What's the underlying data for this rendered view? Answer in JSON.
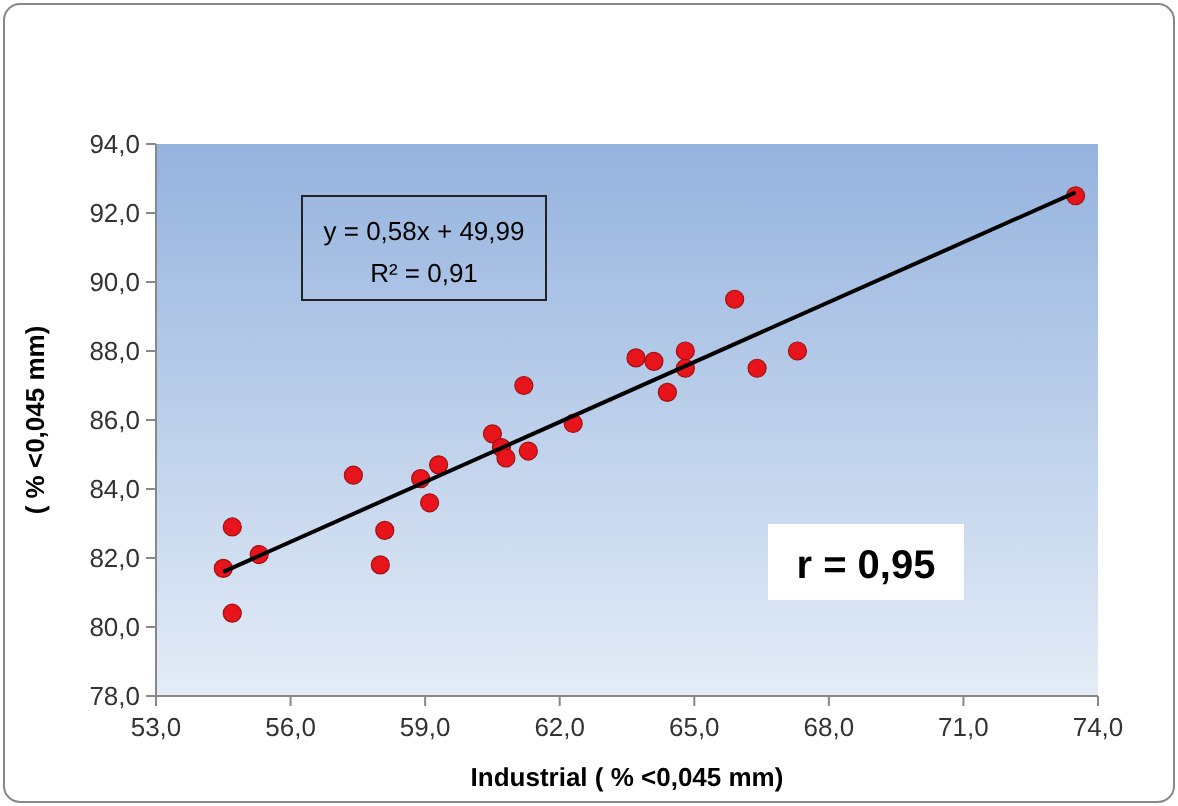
{
  "chart_data": {
    "type": "scatter",
    "xlabel": "Industrial  ( % <0,045 mm)",
    "ylabel": "( % <0,045 mm)",
    "xlim": [
      53,
      74
    ],
    "xticks": [
      {
        "value": 53,
        "label": "53,0"
      },
      {
        "value": 56,
        "label": "56,0"
      },
      {
        "value": 59,
        "label": "59,0"
      },
      {
        "value": 62,
        "label": "62,0"
      },
      {
        "value": 65,
        "label": "65,0"
      },
      {
        "value": 68,
        "label": "68,0"
      },
      {
        "value": 71,
        "label": "71,0"
      },
      {
        "value": 74,
        "label": "74,0"
      }
    ],
    "ylim": [
      78,
      94
    ],
    "yticks": [
      {
        "value": 78,
        "label": "78,0"
      },
      {
        "value": 80,
        "label": "80,0"
      },
      {
        "value": 82,
        "label": "82,0"
      },
      {
        "value": 84,
        "label": "84,0"
      },
      {
        "value": 86,
        "label": "86,0"
      },
      {
        "value": 88,
        "label": "88,0"
      },
      {
        "value": 90,
        "label": "90,0"
      },
      {
        "value": 92,
        "label": "92,0"
      },
      {
        "value": 94,
        "label": "94,0"
      }
    ],
    "grid": false,
    "series": [
      {
        "marker": "circle",
        "color": "#e8141c",
        "x": [
          54.5,
          54.7,
          54.7,
          55.3,
          57.4,
          58.0,
          58.1,
          58.9,
          59.1,
          59.3,
          60.5,
          60.7,
          60.8,
          61.2,
          61.3,
          62.3,
          63.7,
          64.1,
          64.4,
          64.8,
          64.8,
          65.9,
          66.4,
          67.3,
          73.5
        ],
        "values": [
          81.7,
          82.9,
          80.4,
          82.1,
          84.4,
          81.8,
          82.8,
          84.3,
          83.6,
          84.7,
          85.6,
          85.2,
          84.9,
          87.0,
          85.1,
          85.9,
          87.8,
          87.7,
          86.8,
          88.0,
          87.5,
          89.5,
          87.5,
          88.0,
          92.5
        ]
      },
      {
        "type": "line",
        "color": "#000000",
        "x": [
          54.5,
          73.5
        ],
        "values": [
          81.6,
          92.6
        ]
      }
    ],
    "annotations": [
      "y = 0,58x + 49,99",
      "R² = 0,91",
      "r = 0,95"
    ]
  }
}
